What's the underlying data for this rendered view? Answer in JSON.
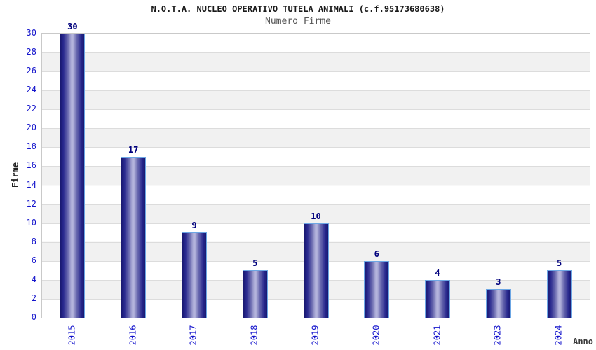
{
  "header": {
    "title": "N.O.T.A. NUCLEO OPERATIVO TUTELA ANIMALI (c.f.95173680638)",
    "subtitle": "Numero Firme"
  },
  "chart_data": {
    "type": "bar",
    "title": "N.O.T.A. NUCLEO OPERATIVO TUTELA ANIMALI (c.f.95173680638)",
    "subtitle": "Numero Firme",
    "categories": [
      "2015",
      "2016",
      "2017",
      "2018",
      "2019",
      "2020",
      "2021",
      "2023",
      "2024"
    ],
    "values": [
      30,
      17,
      9,
      5,
      10,
      6,
      4,
      3,
      5
    ],
    "xlabel": "Anno",
    "ylabel": "Firme",
    "ylim": [
      0,
      30
    ],
    "ytick_step": 2,
    "y_ticks": [
      0,
      2,
      4,
      6,
      8,
      10,
      12,
      14,
      16,
      18,
      20,
      22,
      24,
      26,
      28,
      30
    ],
    "grid": true,
    "legend": false,
    "colors": {
      "bar_dark": "#191970",
      "bar_highlight": "#b4b4dc",
      "bar_border": "#6ca6e4",
      "tick_label": "#1414cc",
      "value_label": "#00007d",
      "stripe": "#f1f1f1",
      "gridline": "#dcdcdc",
      "plot_border": "#c9c9c9"
    }
  }
}
